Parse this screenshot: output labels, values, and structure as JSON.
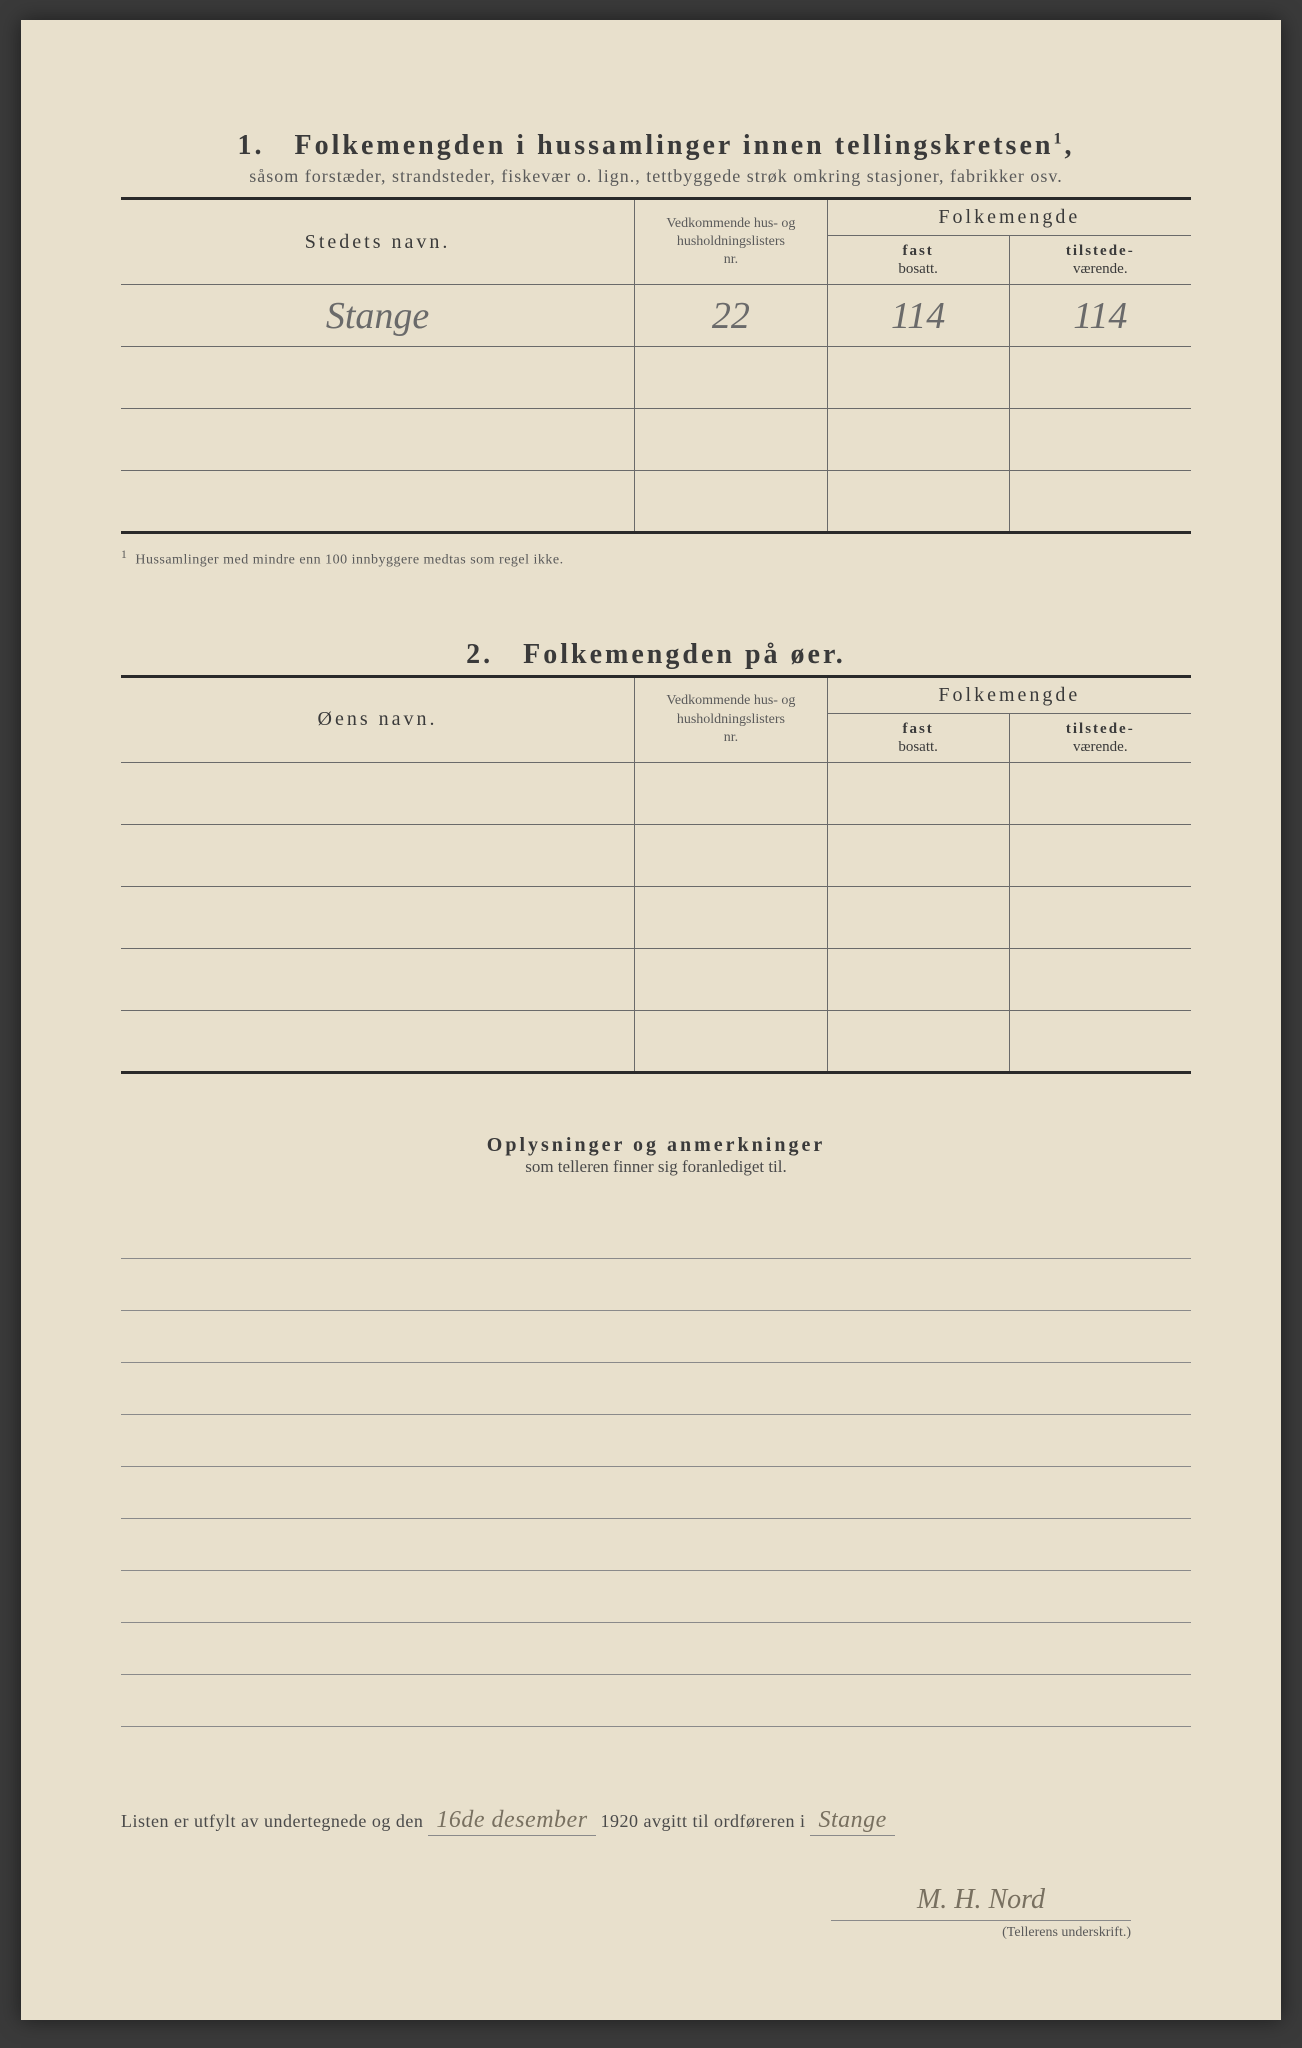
{
  "section1": {
    "number": "1.",
    "title": "Folkemengden i hussamlinger innen tellingskretsen",
    "title_sup": "1",
    "subtitle": "såsom forstæder, strandsteder, fiskevær o. lign., tettbyggede strøk omkring stasjoner, fabrikker osv.",
    "col_name": "Stedets navn.",
    "col_nr_line1": "Vedkommende hus- og",
    "col_nr_line2": "husholdningslisters",
    "col_nr_line3": "nr.",
    "col_group": "Folkemengde",
    "col_fast_bold": "fast",
    "col_fast_sub": "bosatt.",
    "col_til_bold": "tilstede-",
    "col_til_sub": "værende.",
    "rows": [
      {
        "name": "Stange",
        "nr": "22",
        "fast": "114",
        "til": "114"
      },
      {
        "name": "",
        "nr": "",
        "fast": "",
        "til": ""
      },
      {
        "name": "",
        "nr": "",
        "fast": "",
        "til": ""
      },
      {
        "name": "",
        "nr": "",
        "fast": "",
        "til": ""
      }
    ],
    "footnote_marker": "1",
    "footnote": "Hussamlinger med mindre enn 100 innbyggere medtas som regel ikke."
  },
  "section2": {
    "number": "2.",
    "title": "Folkemengden på øer.",
    "col_name": "Øens navn.",
    "row_count": 5
  },
  "section3": {
    "title": "Oplysninger og anmerkninger",
    "subtitle": "som telleren finner sig foranlediget til.",
    "line_count": 10
  },
  "footer": {
    "text_before_date": "Listen er utfylt av undertegnede og den",
    "date_fill": "16de desember",
    "year": "1920",
    "text_after_year": "avgitt til ordføreren i",
    "place_fill": "Stange",
    "signature": "M. H. Nord",
    "signature_label": "(Tellerens underskrift.)"
  },
  "styling": {
    "page_bg": "#e8e0cc",
    "text_color": "#3a3a3a",
    "muted_color": "#5a5a5a",
    "handwriting_color": "#6a6a6a",
    "border_heavy": "#2a2a2a",
    "border_light": "#6a6a6a",
    "title_fontsize": 28,
    "body_fontsize": 18
  }
}
